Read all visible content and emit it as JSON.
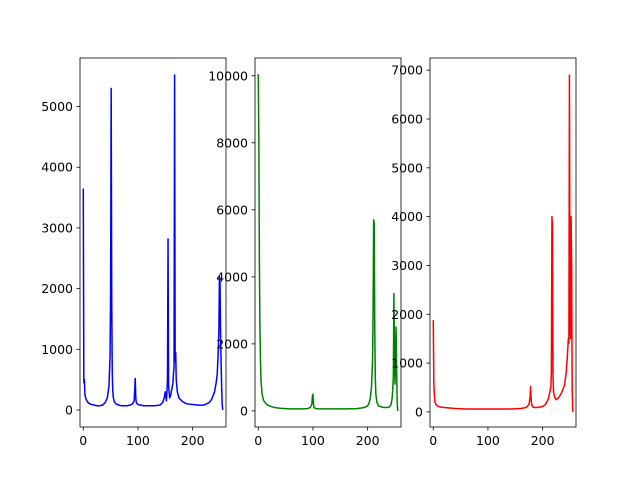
{
  "chart_data": [
    {
      "type": "line",
      "color": "#0000ff",
      "xlim": [
        -6,
        261
      ],
      "ylim": [
        -280,
        5800
      ],
      "xticks": [
        0,
        100,
        200
      ],
      "yticks": [
        0,
        1000,
        2000,
        3000,
        4000,
        5000
      ],
      "tick_labels_x": [
        "0",
        "100",
        "200"
      ],
      "tick_labels_y": [
        "0",
        "1000",
        "2000",
        "3000",
        "4000",
        "5000"
      ],
      "x": [
        0,
        1,
        2,
        3,
        5,
        8,
        12,
        16,
        20,
        25,
        30,
        35,
        40,
        44,
        47,
        49,
        50,
        51,
        52,
        53,
        54,
        55,
        57,
        60,
        65,
        70,
        75,
        80,
        85,
        90,
        93,
        94,
        95,
        96,
        97,
        100,
        105,
        110,
        120,
        130,
        140,
        145,
        148,
        150,
        152,
        153,
        154,
        155,
        156,
        157,
        158,
        160,
        162,
        164,
        165,
        166,
        167,
        168,
        169,
        170,
        172,
        175,
        180,
        185,
        190,
        200,
        210,
        220,
        230,
        235,
        240,
        243,
        245,
        246,
        247,
        248,
        249,
        250,
        251,
        252,
        253,
        254,
        255
      ],
      "values": [
        3650,
        450,
        500,
        250,
        180,
        130,
        100,
        90,
        80,
        70,
        70,
        80,
        120,
        200,
        400,
        900,
        2000,
        5300,
        1800,
        600,
        300,
        200,
        130,
        100,
        80,
        70,
        70,
        70,
        80,
        100,
        150,
        300,
        520,
        200,
        120,
        90,
        80,
        70,
        70,
        70,
        80,
        120,
        200,
        300,
        150,
        300,
        500,
        2820,
        400,
        300,
        200,
        250,
        350,
        450,
        600,
        700,
        5520,
        800,
        950,
        500,
        300,
        200,
        150,
        120,
        100,
        90,
        80,
        80,
        120,
        180,
        300,
        450,
        600,
        800,
        1000,
        1300,
        2200,
        2150,
        1300,
        800,
        400,
        100,
        0
      ]
    },
    {
      "type": "line",
      "color": "#008000",
      "xlim": [
        -6,
        261
      ],
      "ylim": [
        -480,
        10530
      ],
      "xticks": [
        0,
        100,
        200
      ],
      "yticks": [
        0,
        2000,
        4000,
        6000,
        8000,
        10000
      ],
      "tick_labels_x": [
        "0",
        "100",
        "200"
      ],
      "tick_labels_y": [
        "0",
        "2000",
        "4000",
        "6000",
        "8000",
        "10000"
      ],
      "x": [
        0,
        1,
        2,
        3,
        4,
        5,
        7,
        10,
        15,
        20,
        30,
        40,
        50,
        60,
        70,
        80,
        90,
        95,
        98,
        99,
        100,
        101,
        102,
        105,
        110,
        120,
        140,
        160,
        180,
        190,
        195,
        200,
        203,
        205,
        207,
        209,
        210,
        211,
        212,
        213,
        214,
        215,
        217,
        220,
        225,
        230,
        235,
        240,
        243,
        245,
        247,
        248,
        249,
        250,
        251,
        252,
        253,
        254,
        255
      ],
      "values": [
        10050,
        8000,
        4500,
        2500,
        1500,
        900,
        500,
        300,
        200,
        150,
        100,
        80,
        70,
        60,
        60,
        60,
        70,
        100,
        200,
        450,
        500,
        200,
        100,
        70,
        60,
        60,
        60,
        60,
        70,
        90,
        110,
        150,
        250,
        400,
        700,
        1500,
        3000,
        5700,
        5600,
        2500,
        1000,
        500,
        250,
        150,
        120,
        100,
        100,
        120,
        200,
        400,
        1000,
        3500,
        2000,
        800,
        1500,
        2500,
        1200,
        300,
        0
      ]
    },
    {
      "type": "line",
      "color": "#ff0000",
      "xlim": [
        -6,
        261
      ],
      "ylim": [
        -310,
        7250
      ],
      "xticks": [
        0,
        100,
        200
      ],
      "yticks": [
        0,
        1000,
        2000,
        3000,
        4000,
        5000,
        6000,
        7000
      ],
      "tick_labels_x": [
        "0",
        "100",
        "200"
      ],
      "tick_labels_y": [
        "0",
        "1000",
        "2000",
        "3000",
        "4000",
        "5000",
        "6000",
        "7000"
      ],
      "x": [
        0,
        1,
        2,
        3,
        5,
        8,
        12,
        20,
        30,
        40,
        60,
        80,
        100,
        120,
        140,
        160,
        170,
        175,
        177,
        178,
        179,
        180,
        182,
        185,
        190,
        200,
        205,
        210,
        213,
        215,
        216,
        217,
        218,
        219,
        220,
        222,
        225,
        230,
        235,
        240,
        243,
        245,
        247,
        248,
        249,
        250,
        251,
        252,
        253,
        254,
        255
      ],
      "values": [
        1880,
        600,
        350,
        200,
        150,
        120,
        100,
        90,
        80,
        70,
        60,
        60,
        60,
        60,
        60,
        70,
        90,
        150,
        300,
        520,
        250,
        150,
        100,
        90,
        90,
        110,
        150,
        250,
        400,
        500,
        800,
        4000,
        3800,
        700,
        400,
        300,
        250,
        300,
        400,
        550,
        800,
        1100,
        1500,
        1400,
        6900,
        2000,
        1500,
        4000,
        3000,
        500,
        0
      ]
    }
  ]
}
